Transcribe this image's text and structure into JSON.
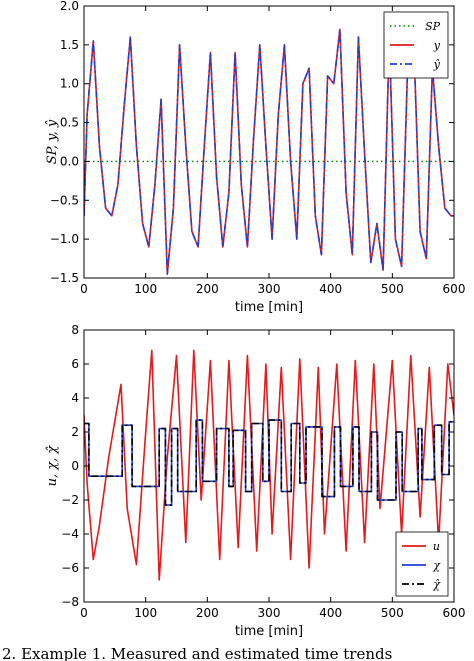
{
  "caption": "2. Example 1. Measured and estimated time trends",
  "chart_data": [
    {
      "type": "line",
      "xlabel": "time  [min]",
      "ylabel": "SP, y, ŷ",
      "xlim": [
        0,
        600
      ],
      "ylim": [
        -1.5,
        2.0
      ],
      "xticks": [
        0,
        100,
        200,
        300,
        400,
        500,
        600
      ],
      "yticks": [
        -1.5,
        -1.0,
        -0.5,
        0.0,
        0.5,
        1.0,
        1.5,
        2.0
      ],
      "ytick_labels": [
        "−1.5",
        "−1.0",
        "−0.5",
        "0.0",
        "0.5",
        "1.0",
        "1.5",
        "2.0"
      ],
      "grid": false,
      "legend_position": "top-right",
      "series": [
        {
          "name": "SP",
          "color": "#008000",
          "style": "dotted",
          "x": [
            0,
            600
          ],
          "y": [
            0,
            0
          ]
        },
        {
          "name": "y",
          "color": "#e41a1c",
          "style": "solid",
          "x": [
            0,
            5,
            15,
            25,
            35,
            45,
            55,
            65,
            75,
            85,
            95,
            105,
            115,
            125,
            135,
            145,
            155,
            165,
            175,
            185,
            195,
            205,
            215,
            225,
            235,
            245,
            255,
            265,
            275,
            285,
            295,
            305,
            315,
            325,
            335,
            345,
            355,
            365,
            375,
            385,
            395,
            405,
            415,
            425,
            435,
            445,
            455,
            465,
            475,
            485,
            495,
            505,
            515,
            525,
            535,
            545,
            555,
            565,
            575,
            585,
            595,
            600
          ],
          "y": [
            -0.7,
            0.6,
            1.55,
            0.2,
            -0.6,
            -0.7,
            -0.3,
            0.7,
            1.6,
            0.2,
            -0.8,
            -1.1,
            -0.3,
            0.8,
            -1.45,
            -0.6,
            1.5,
            0.2,
            -0.9,
            -1.1,
            0.2,
            1.4,
            -0.2,
            -1.1,
            -0.4,
            1.4,
            -0.3,
            -1.1,
            0.3,
            1.5,
            0.2,
            -1.0,
            0.6,
            1.5,
            0.0,
            -1.0,
            1.0,
            1.2,
            -0.7,
            -1.2,
            1.1,
            1.0,
            1.7,
            -0.4,
            -1.2,
            1.6,
            0.1,
            -1.3,
            -0.8,
            -1.4,
            1.6,
            -1.0,
            -1.35,
            1.3,
            1.5,
            -0.9,
            -1.25,
            1.2,
            0.2,
            -0.6,
            -0.7,
            -0.7
          ]
        },
        {
          "name": "ŷ",
          "color": "#1f3fd6",
          "style": "dashdot",
          "x": [
            0,
            5,
            15,
            25,
            35,
            45,
            55,
            65,
            75,
            85,
            95,
            105,
            115,
            125,
            135,
            145,
            155,
            165,
            175,
            185,
            195,
            205,
            215,
            225,
            235,
            245,
            255,
            265,
            275,
            285,
            295,
            305,
            315,
            325,
            335,
            345,
            355,
            365,
            375,
            385,
            395,
            405,
            415,
            425,
            435,
            445,
            455,
            465,
            475,
            485,
            495,
            505,
            515,
            525,
            535,
            545,
            555,
            565,
            575,
            585,
            595,
            600
          ],
          "y": [
            -0.7,
            0.6,
            1.55,
            0.2,
            -0.6,
            -0.7,
            -0.3,
            0.7,
            1.6,
            0.2,
            -0.8,
            -1.1,
            -0.3,
            0.8,
            -1.45,
            -0.6,
            1.5,
            0.2,
            -0.9,
            -1.1,
            0.2,
            1.4,
            -0.2,
            -1.1,
            -0.4,
            1.4,
            -0.3,
            -1.1,
            0.3,
            1.5,
            0.2,
            -1.0,
            0.6,
            1.5,
            0.0,
            -1.0,
            1.0,
            1.2,
            -0.7,
            -1.2,
            1.1,
            1.0,
            1.7,
            -0.4,
            -1.2,
            1.6,
            0.1,
            -1.3,
            -0.8,
            -1.4,
            1.6,
            -1.0,
            -1.35,
            1.3,
            1.5,
            -0.9,
            -1.25,
            1.2,
            0.2,
            -0.6,
            -0.7,
            -0.7
          ]
        }
      ]
    },
    {
      "type": "line",
      "xlabel": "time  [min]",
      "ylabel": "u, χ, χ̂",
      "xlim": [
        0,
        600
      ],
      "ylim": [
        -8,
        8
      ],
      "xticks": [
        0,
        100,
        200,
        300,
        400,
        500,
        600
      ],
      "yticks": [
        -8,
        -6,
        -4,
        -2,
        0,
        2,
        4,
        6,
        8
      ],
      "ytick_labels": [
        "−8",
        "−6",
        "−4",
        "−2",
        "0",
        "2",
        "4",
        "6",
        "8"
      ],
      "grid": false,
      "legend_position": "bottom-right",
      "series": [
        {
          "name": "u",
          "color": "#e41a1c",
          "style": "solid",
          "x": [
            0,
            5,
            15,
            25,
            40,
            60,
            70,
            85,
            100,
            110,
            122,
            135,
            150,
            165,
            178,
            190,
            205,
            220,
            235,
            250,
            265,
            280,
            295,
            305,
            320,
            335,
            350,
            365,
            380,
            390,
            410,
            425,
            440,
            455,
            470,
            480,
            500,
            515,
            530,
            545,
            560,
            575,
            590,
            600
          ],
          "y": [
            3.0,
            -1.0,
            -5.5,
            -3.5,
            0.5,
            4.8,
            -2.5,
            -5.8,
            2.0,
            6.8,
            -6.7,
            0.5,
            6.5,
            -4.5,
            6.8,
            -2.0,
            6.2,
            -5.5,
            6.2,
            -4.8,
            6.5,
            -5.0,
            6.0,
            -4.0,
            5.8,
            -5.5,
            6.3,
            -6.0,
            5.8,
            -4.0,
            6.0,
            -5.0,
            6.2,
            -4.5,
            6.0,
            -2.5,
            6.2,
            -4.0,
            6.5,
            -3.0,
            5.8,
            -4.5,
            6.0,
            3.0
          ]
        },
        {
          "name": "χ",
          "color": "#1f3fd6",
          "style": "solid",
          "x": [
            0,
            8,
            8,
            62,
            62,
            78,
            78,
            122,
            122,
            132,
            132,
            142,
            142,
            152,
            152,
            182,
            182,
            192,
            192,
            215,
            215,
            235,
            235,
            242,
            242,
            262,
            262,
            272,
            272,
            290,
            290,
            300,
            300,
            320,
            320,
            336,
            336,
            350,
            350,
            360,
            360,
            386,
            386,
            406,
            406,
            416,
            416,
            436,
            436,
            446,
            446,
            466,
            466,
            476,
            476,
            506,
            506,
            516,
            516,
            542,
            542,
            548,
            548,
            568,
            568,
            580,
            580,
            592,
            592,
            600
          ],
          "y": [
            2.5,
            2.5,
            -0.6,
            -0.6,
            2.4,
            2.4,
            -1.2,
            -1.2,
            2.2,
            2.2,
            -2.3,
            -2.3,
            2.2,
            2.2,
            -1.5,
            -1.5,
            2.7,
            2.7,
            -0.9,
            -0.9,
            2.2,
            2.2,
            -1.2,
            -1.2,
            2.1,
            2.1,
            -1.5,
            -1.5,
            2.5,
            2.5,
            -0.9,
            -0.9,
            2.7,
            2.7,
            -1.5,
            -1.5,
            2.5,
            2.5,
            -1.0,
            -1.0,
            2.3,
            2.3,
            -1.8,
            -1.8,
            2.3,
            2.3,
            -1.2,
            -1.2,
            2.3,
            2.3,
            -1.5,
            -1.5,
            2.0,
            2.0,
            -2.0,
            -2.0,
            2.0,
            2.0,
            -1.5,
            -1.5,
            2.2,
            2.2,
            -0.8,
            -0.8,
            2.4,
            2.4,
            -0.5,
            -0.5,
            2.6,
            2.6
          ]
        },
        {
          "name": "χ̂",
          "color": "#000000",
          "style": "dashdot",
          "x": [
            0,
            8,
            8,
            62,
            62,
            78,
            78,
            122,
            122,
            132,
            132,
            142,
            142,
            152,
            152,
            182,
            182,
            192,
            192,
            215,
            215,
            235,
            235,
            242,
            242,
            262,
            262,
            272,
            272,
            290,
            290,
            300,
            300,
            320,
            320,
            336,
            336,
            350,
            350,
            360,
            360,
            386,
            386,
            406,
            406,
            416,
            416,
            436,
            436,
            446,
            446,
            466,
            466,
            476,
            476,
            506,
            506,
            516,
            516,
            542,
            542,
            548,
            548,
            568,
            568,
            580,
            580,
            592,
            592,
            600
          ],
          "y": [
            2.5,
            2.5,
            -0.6,
            -0.6,
            2.4,
            2.4,
            -1.2,
            -1.2,
            2.2,
            2.2,
            -2.3,
            -2.3,
            2.2,
            2.2,
            -1.5,
            -1.5,
            2.7,
            2.7,
            -0.9,
            -0.9,
            2.2,
            2.2,
            -1.2,
            -1.2,
            2.1,
            2.1,
            -1.5,
            -1.5,
            2.5,
            2.5,
            -0.9,
            -0.9,
            2.7,
            2.7,
            -1.5,
            -1.5,
            2.5,
            2.5,
            -1.0,
            -1.0,
            2.3,
            2.3,
            -1.8,
            -1.8,
            2.3,
            2.3,
            -1.2,
            -1.2,
            2.3,
            2.3,
            -1.5,
            -1.5,
            2.0,
            2.0,
            -2.0,
            -2.0,
            2.0,
            2.0,
            -1.5,
            -1.5,
            2.2,
            2.2,
            -0.8,
            -0.8,
            2.4,
            2.4,
            -0.5,
            -0.5,
            2.6,
            2.6
          ]
        }
      ]
    }
  ]
}
